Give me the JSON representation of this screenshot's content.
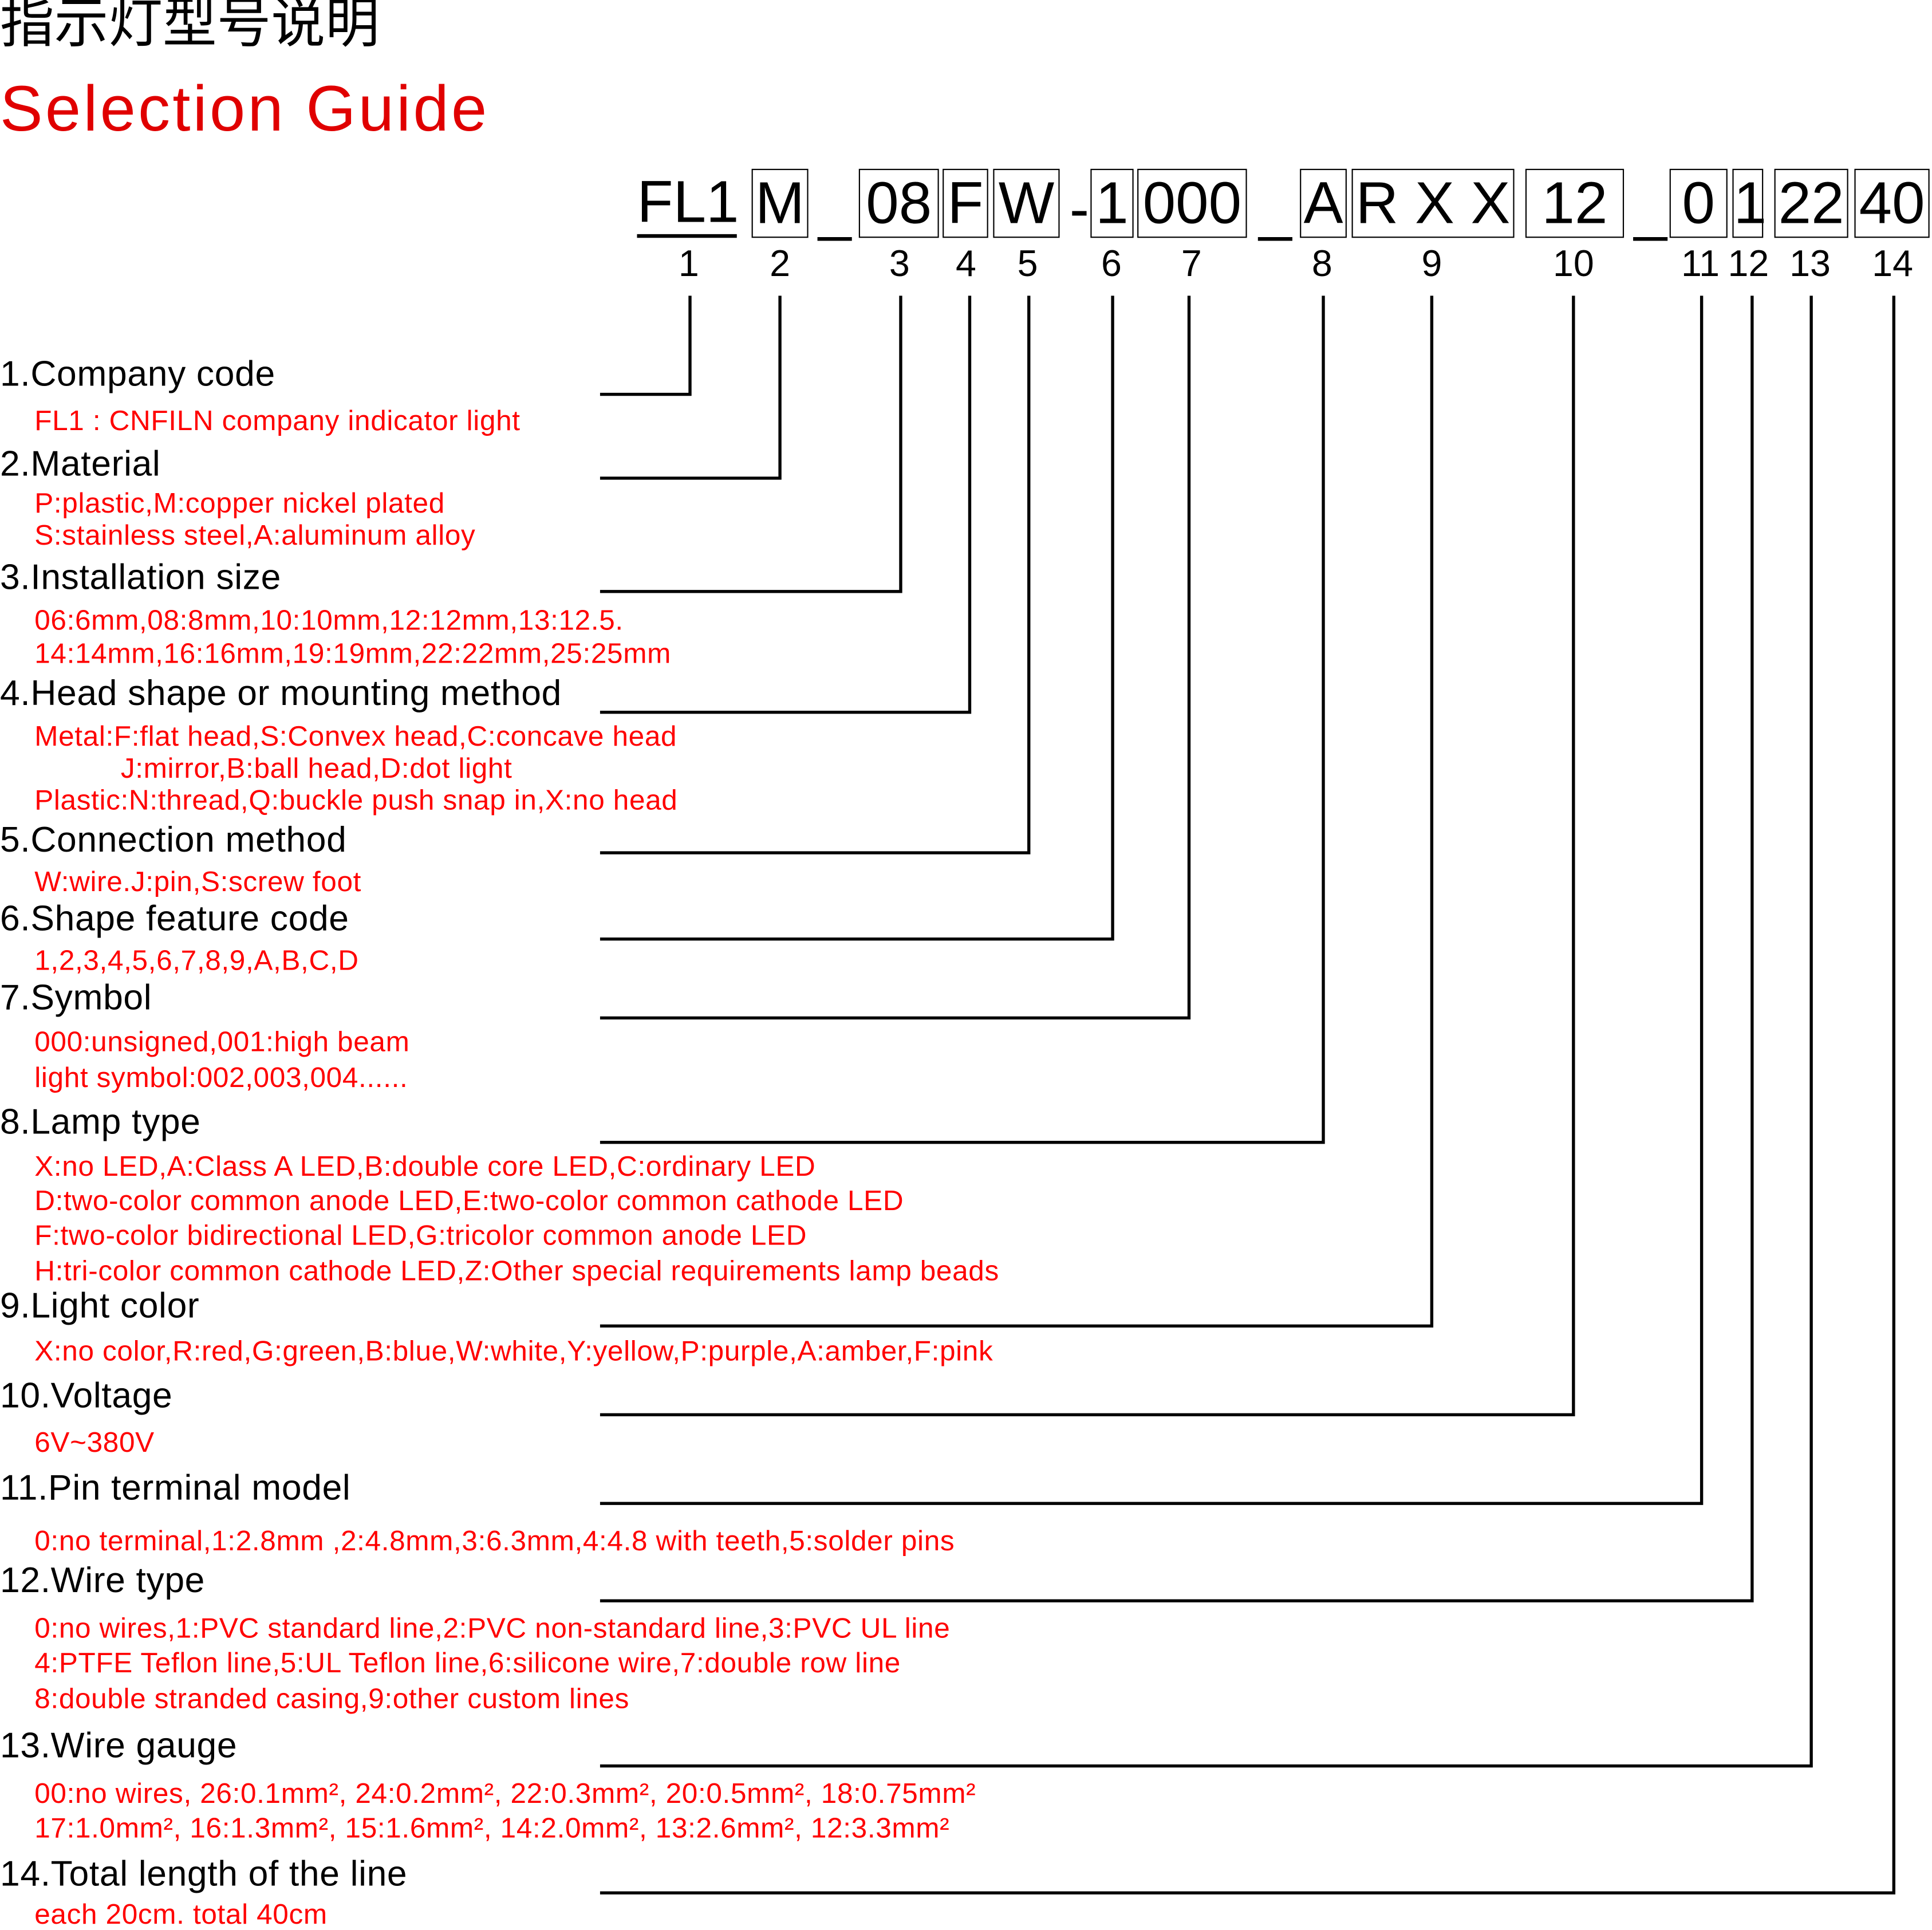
{
  "title_cn": "指示灯型号说明",
  "title_en": "Selection  Guide",
  "code_segments": [
    {
      "text": "FL1",
      "style": "underline"
    },
    {
      "text": "M",
      "style": "box"
    },
    {
      "text": "_",
      "style": "plain"
    },
    {
      "text": "08",
      "style": "box"
    },
    {
      "text": "F",
      "style": "box"
    },
    {
      "text": "W",
      "style": "box"
    },
    {
      "text": "-",
      "style": "plain"
    },
    {
      "text": "1",
      "style": "box"
    },
    {
      "text": "000",
      "style": "box"
    },
    {
      "text": "_",
      "style": "plain"
    },
    {
      "text": "A",
      "style": "box"
    },
    {
      "text": "R X X",
      "style": "box"
    },
    {
      "text": "12",
      "style": "box"
    },
    {
      "text": "_",
      "style": "plain"
    },
    {
      "text": "0",
      "style": "box"
    },
    {
      "text": "1",
      "style": "box"
    },
    {
      "text": "22",
      "style": "box"
    },
    {
      "text": "40",
      "style": "box"
    }
  ],
  "position_numbers": [
    "1",
    "2",
    "3",
    "4",
    "5",
    "6",
    "7",
    "8",
    "9",
    "10",
    "11",
    "12",
    "13",
    "14"
  ],
  "sections": [
    {
      "heading": "1.Company code",
      "lines": [
        {
          "text": "FL1 :   CNFILN company indicator light"
        }
      ]
    },
    {
      "heading": "2.Material",
      "lines": [
        {
          "text": "P:plastic,M:copper nickel plated"
        },
        {
          "text": "S:stainless steel,A:aluminum alloy"
        }
      ]
    },
    {
      "heading": "3.Installation size",
      "lines": [
        {
          "text": "06:6mm,08:8mm,10:10mm,12:12mm,13:12.5."
        },
        {
          "text": "14:14mm,16:16mm,19:19mm,22:22mm,25:25mm"
        }
      ]
    },
    {
      "heading": "4.Head shape or mounting method",
      "lines": [
        {
          "text": "Metal:F:flat head,S:Convex head,C:concave head"
        },
        {
          "text": "J:mirror,B:ball head,D:dot light",
          "indent": true
        },
        {
          "text": "Plastic:N:thread,Q:buckle push snap in,X:no head"
        }
      ]
    },
    {
      "heading": "5.Connection method",
      "lines": [
        {
          "text": "W:wire.J:pin,S:screw foot"
        }
      ]
    },
    {
      "heading": "6.Shape feature code",
      "lines": [
        {
          "text": "1,2,3,4,5,6,7,8,9,A,B,C,D"
        }
      ]
    },
    {
      "heading": "7.Symbol",
      "lines": [
        {
          "text": "000:unsigned,001:high beam"
        },
        {
          "text": "light symbol:002,003,004......"
        }
      ]
    },
    {
      "heading": "8.Lamp type",
      "lines": [
        {
          "text": "X:no LED,A:Class A LED,B:double core LED,C:ordinary LED"
        },
        {
          "text": "D:two-color common anode LED,E:two-color common cathode LED"
        },
        {
          "text": "F:two-color bidirectional LED,G:tricolor common anode LED"
        },
        {
          "text": "H:tri-color common cathode LED,Z:Other special requirements lamp beads"
        }
      ]
    },
    {
      "heading": "9.Light color",
      "lines": [
        {
          "text": "X:no color,R:red,G:green,B:blue,W:white,Y:yellow,P:purple,A:amber,F:pink"
        }
      ]
    },
    {
      "heading": "10.Voltage",
      "lines": [
        {
          "text": "6V~380V"
        }
      ]
    },
    {
      "heading": "11.Pin terminal model",
      "lines": [
        {
          "text": "0:no terminal,1:2.8mm ,2:4.8mm,3:6.3mm,4:4.8 with teeth,5:solder pins"
        }
      ]
    },
    {
      "heading": "12.Wire type",
      "lines": [
        {
          "text": "0:no wires,1:PVC standard line,2:PVC non-standard line,3:PVC UL line"
        },
        {
          "text": "4:PTFE Teflon line,5:UL Teflon line,6:silicone wire,7:double row line"
        },
        {
          "text": "8:double stranded casing,9:other custom lines"
        }
      ]
    },
    {
      "heading": "13.Wire gauge",
      "lines": [
        {
          "text": "00:no wires, 26:0.1mm², 24:0.2mm², 22:0.3mm², 20:0.5mm², 18:0.75mm²"
        },
        {
          "text": "17:1.0mm², 16:1.3mm², 15:1.6mm², 14:2.0mm², 13:2.6mm², 12:3.3mm²"
        }
      ]
    },
    {
      "heading": "14.Total length of the line",
      "lines": [
        {
          "text": "each 20cm. total 40cm"
        }
      ]
    }
  ],
  "colors": {
    "accent_red": "#ff0000",
    "title_red": "#e00000",
    "text": "#000000"
  }
}
